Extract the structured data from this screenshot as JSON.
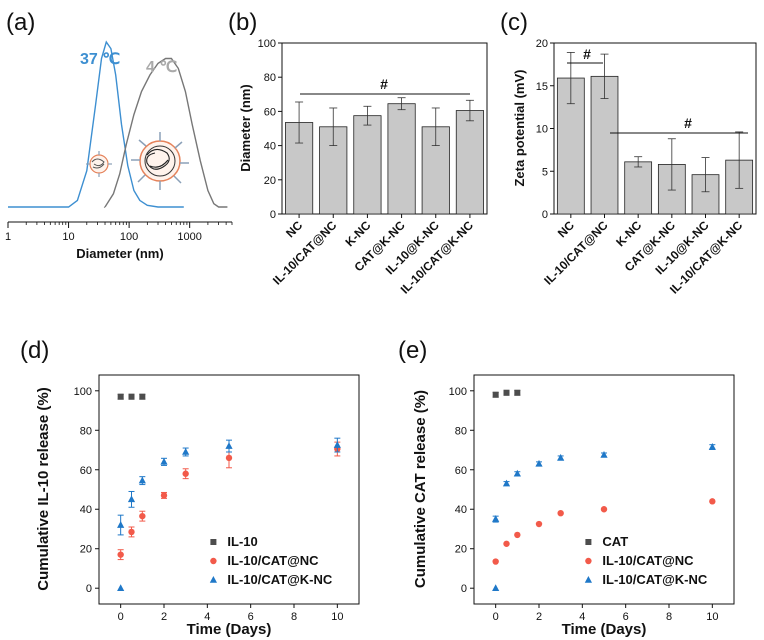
{
  "chart_data": [
    {
      "panel": "(a)",
      "type": "line",
      "xlabel": "Diameter (nm)",
      "xscale": "log",
      "xlim": [
        1,
        5000
      ],
      "xticks": [
        "1",
        "10",
        "100",
        "1000"
      ],
      "series": [
        {
          "name": "37 ℃",
          "color": "#3d8fd1",
          "x": [
            10,
            14,
            20,
            28,
            35,
            42,
            50,
            60,
            75,
            95,
            120,
            150,
            200,
            300,
            500,
            800
          ],
          "y": [
            0,
            0.04,
            0.22,
            0.62,
            0.9,
            1.0,
            0.96,
            0.8,
            0.5,
            0.25,
            0.1,
            0.04,
            0.01,
            0,
            0,
            0
          ]
        },
        {
          "name": "4 ℃",
          "color": "#777777",
          "x": [
            40,
            55,
            70,
            90,
            120,
            160,
            220,
            300,
            400,
            500,
            650,
            850,
            1100,
            1500,
            2000,
            2500,
            3000
          ],
          "y": [
            0,
            0.08,
            0.2,
            0.38,
            0.56,
            0.7,
            0.8,
            0.87,
            0.9,
            0.9,
            0.84,
            0.7,
            0.5,
            0.28,
            0.1,
            0.02,
            0
          ]
        }
      ]
    },
    {
      "panel": "(b)",
      "type": "bar",
      "ylabel": "Diameter (nm)",
      "ylim": [
        0,
        100
      ],
      "yticks": [
        "0",
        "20",
        "40",
        "60",
        "80",
        "100"
      ],
      "categories": [
        "NC",
        "IL-10/CAT@NC",
        "K-NC",
        "CAT@K-NC",
        "IL-10@K-NC",
        "IL-10/CAT@K-NC"
      ],
      "values": [
        53.5,
        51,
        57.5,
        64.5,
        51,
        60.5
      ],
      "errors": [
        12,
        11,
        5.5,
        3.5,
        11,
        6
      ],
      "annotation": "#"
    },
    {
      "panel": "(c)",
      "type": "bar",
      "ylabel": "Zeta potential (mV)",
      "ylim": [
        0,
        20
      ],
      "yticks": [
        "0",
        "5",
        "10",
        "15",
        "20"
      ],
      "categories": [
        "NC",
        "IL-10/CAT@NC",
        "K-NC",
        "CAT@K-NC",
        "IL-10@K-NC",
        "IL-10/CAT@K-NC"
      ],
      "values": [
        15.9,
        16.1,
        6.1,
        5.8,
        4.6,
        6.3
      ],
      "errors": [
        3.0,
        2.6,
        0.6,
        3.0,
        2.0,
        3.3
      ],
      "annotations": [
        "#",
        "#"
      ]
    },
    {
      "panel": "(d)",
      "type": "scatter",
      "xlabel": "Time (Days)",
      "ylabel": "Cumulative IL-10 release (%)",
      "xlim": [
        -1,
        11
      ],
      "ylim": [
        -8,
        108
      ],
      "xticks": [
        "0",
        "2",
        "4",
        "6",
        "8",
        "10"
      ],
      "yticks": [
        "0",
        "20",
        "40",
        "60",
        "80",
        "100"
      ],
      "series": [
        {
          "name": "IL-10",
          "marker": "square",
          "color": "#4d4d4d",
          "x": [
            0,
            0.5,
            1
          ],
          "y": [
            97,
            97,
            97
          ],
          "err": [
            1.2,
            1.2,
            1.2
          ]
        },
        {
          "name": "IL-10/CAT@NC",
          "marker": "circle",
          "color": "#f25a4a",
          "x": [
            0,
            0.5,
            1,
            2,
            3,
            5,
            10
          ],
          "y": [
            17,
            28.5,
            36.5,
            47,
            58,
            66,
            70.5
          ],
          "err": [
            2.5,
            2.5,
            2.5,
            1.5,
            2.5,
            5,
            3.5
          ]
        },
        {
          "name": "IL-10/CAT@K-NC",
          "marker": "triangle",
          "color": "#1f78c8",
          "x": [
            0,
            0,
            0.5,
            1,
            2,
            3,
            5,
            10
          ],
          "y": [
            0,
            32,
            45,
            54.5,
            64,
            69,
            72,
            72.5
          ],
          "err": [
            0,
            5,
            4,
            2,
            1.8,
            2,
            3,
            3.5
          ]
        }
      ]
    },
    {
      "panel": "(e)",
      "type": "scatter",
      "xlabel": "Time (Days)",
      "ylabel": "Cumulative CAT release (%)",
      "xlim": [
        -1,
        11
      ],
      "ylim": [
        -8,
        108
      ],
      "xticks": [
        "0",
        "2",
        "4",
        "6",
        "8",
        "10"
      ],
      "yticks": [
        "0",
        "20",
        "40",
        "60",
        "80",
        "100"
      ],
      "series": [
        {
          "name": "CAT",
          "marker": "square",
          "color": "#4d4d4d",
          "x": [
            0,
            0.5,
            1
          ],
          "y": [
            98,
            99,
            99
          ],
          "err": [
            1.2,
            1.2,
            1.2
          ]
        },
        {
          "name": "IL-10/CAT@NC",
          "marker": "circle",
          "color": "#f25a4a",
          "x": [
            0,
            0.5,
            1,
            2,
            3,
            5,
            10
          ],
          "y": [
            13.5,
            22.5,
            27,
            32.5,
            38,
            40,
            44
          ],
          "err": [
            0,
            0,
            0,
            0,
            0,
            0,
            0
          ]
        },
        {
          "name": "IL-10/CAT@K-NC",
          "marker": "triangle",
          "color": "#1f78c8",
          "x": [
            0,
            0,
            0.5,
            1,
            2,
            3,
            5,
            10
          ],
          "y": [
            0,
            35,
            53,
            58,
            63,
            66,
            67.5,
            71.5
          ],
          "err": [
            0,
            1.5,
            1,
            1,
            1,
            1,
            1,
            1.2
          ]
        }
      ]
    }
  ]
}
